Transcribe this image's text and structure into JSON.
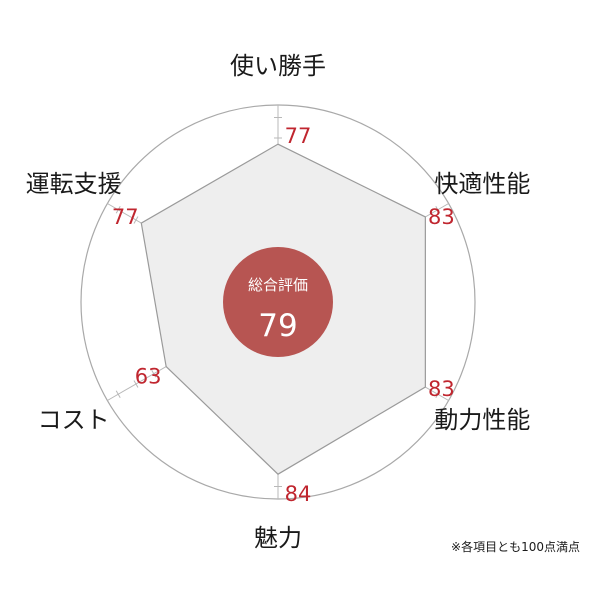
{
  "chart_data": {
    "type": "radar",
    "categories": [
      "使い勝手",
      "快適性能",
      "動力性能",
      "魅力",
      "コスト",
      "運転支援"
    ],
    "values": [
      77,
      83,
      83,
      84,
      63,
      77
    ],
    "value_labels": [
      "77",
      "83",
      "83",
      "84",
      "63",
      "77"
    ],
    "max": 100,
    "overall_title": "総合評価",
    "overall_score": "79",
    "footnote": "※各項目とも100点満点"
  },
  "colors": {
    "fill": "#eeeeee",
    "stroke": "#9a9a9a",
    "ring": "#a9a9a9",
    "axis": "#b8b8b8",
    "value_text": "#c0262f",
    "center_circle": "#b75552"
  }
}
